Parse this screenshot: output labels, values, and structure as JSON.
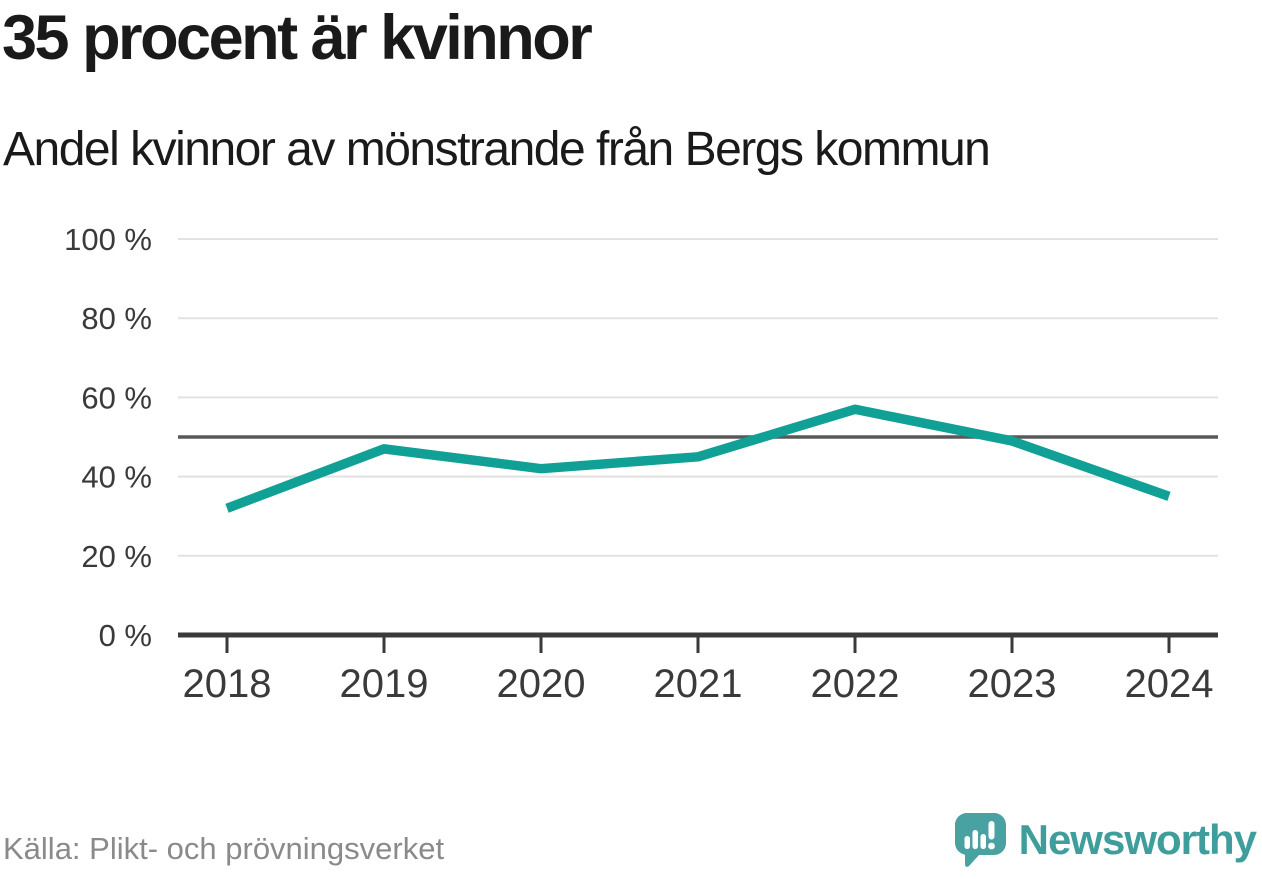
{
  "header": {
    "title": "35 procent är kvinnor",
    "subtitle": "Andel kvinnor av mönstrande från Bergs kommun"
  },
  "chart_data": {
    "type": "line",
    "x": [
      "2018",
      "2019",
      "2020",
      "2021",
      "2022",
      "2023",
      "2024"
    ],
    "values": [
      32,
      47,
      42,
      45,
      57,
      49,
      35
    ],
    "title": "35 procent är kvinnor",
    "subtitle": "Andel kvinnor av mönstrande från Bergs kommun",
    "xlabel": "",
    "ylabel": "",
    "ylim": [
      0,
      100
    ],
    "yticks": [
      0,
      20,
      40,
      60,
      80,
      100
    ],
    "ytick_labels": [
      "0 %",
      "20 %",
      "40 %",
      "60 %",
      "80 %",
      "100 %"
    ],
    "reference_line": 50,
    "grid": true,
    "legend": "none"
  },
  "footer": {
    "source": "Källa: Plikt- och prövningsverket",
    "brand": "Newsworthy"
  },
  "colors": {
    "accent_line": "#11a096",
    "reference_line": "#58585a",
    "grid_line": "#e2e2e2",
    "axis": "#3a3a3a",
    "tick_text": "#3a3a3a",
    "title_text": "#1a1a1a",
    "muted_text": "#8a8a8a",
    "logo_fill": "#4aa1a1",
    "logo_text": "#3f9e9b"
  }
}
